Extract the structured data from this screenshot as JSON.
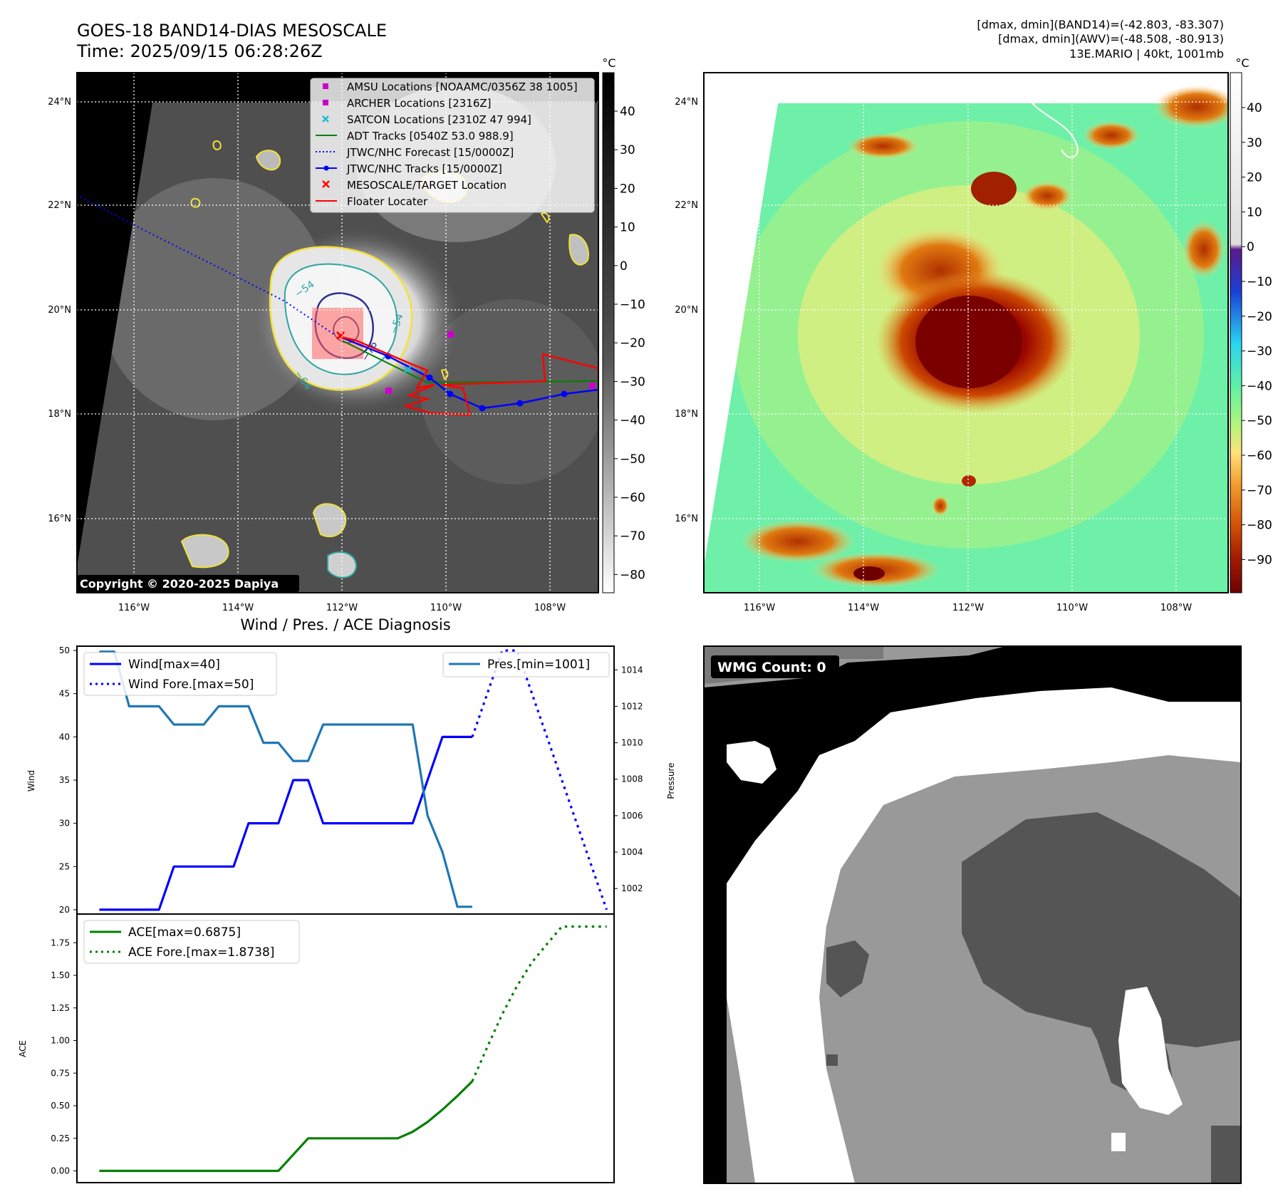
{
  "header": {
    "title_line1": "GOES-18 BAND14-DIAS MESOSCALE",
    "title_line2": "Time: 2025/09/15 06:28:26Z",
    "stat_line1": "[dmax, dmin](BAND14)=(-42.803, -83.307)",
    "stat_line2": "[dmax, dmin](AWV)=(-48.508, -80.913)",
    "stat_line3": "13E.MARIO | 40kt, 1001mb"
  },
  "copyright": "Copyright © 2020-2025 Dapiya",
  "map_axes": {
    "lon_labels": [
      "116°W",
      "114°W",
      "112°W",
      "110°W",
      "108°W"
    ],
    "lat_labels": [
      "24°N",
      "22°N",
      "20°N",
      "18°N",
      "16°N"
    ]
  },
  "ir_colorbar": {
    "unit": "°C",
    "ticks": [
      "40",
      "30",
      "20",
      "10",
      "0",
      "−10",
      "−20",
      "−30",
      "−40",
      "−50",
      "−60",
      "−70",
      "−80"
    ]
  },
  "awv_colorbar": {
    "unit": "°C",
    "ticks": [
      "40",
      "30",
      "20",
      "10",
      "0",
      "−10",
      "−20",
      "−30",
      "−40",
      "−50",
      "−60",
      "−70",
      "−80",
      "−90"
    ]
  },
  "contour_labels": [
    "−54",
    "−64",
    "−76",
    "−54"
  ],
  "legend": [
    {
      "label": "AMSU Locations [NOAAMC/0356Z 38 1005]",
      "marker": "square",
      "color": "#cc00cc"
    },
    {
      "label": "ARCHER Locations [2316Z]",
      "marker": "square",
      "color": "#cc00cc"
    },
    {
      "label": "SATCON Locations [2310Z 47 994]",
      "marker": "x",
      "color": "#17becf"
    },
    {
      "label": "ADT Tracks [0540Z 53.0 988.9]",
      "marker": "line",
      "color": "#008000"
    },
    {
      "label": "JTWC/NHC Forecast [15/0000Z]",
      "marker": "dotted",
      "color": "#0000ff"
    },
    {
      "label": "JTWC/NHC Tracks [15/0000Z]",
      "marker": "line-dot",
      "color": "#0000ff"
    },
    {
      "label": "MESOSCALE/TARGET Location",
      "marker": "x",
      "color": "#ff0000"
    },
    {
      "label": "Floater Locater",
      "marker": "line",
      "color": "#ff0000"
    }
  ],
  "wmg": {
    "label": "WMG Count: 0"
  },
  "chart_data": [
    {
      "type": "line",
      "title": "Wind / Pres. / ACE Diagnosis",
      "ylabel": "Wind",
      "ylabel_right": "Pressure",
      "ylim": [
        19.5,
        50.5
      ],
      "ylim_right": [
        1000.6,
        1015.3
      ],
      "xlim": [
        -1.5,
        34.5
      ],
      "y_ticks": [
        "50",
        "45",
        "40",
        "35",
        "30",
        "25",
        "20"
      ],
      "y_ticks_right": [
        "1014",
        "1012",
        "1010",
        "1008",
        "1006",
        "1004",
        "1002"
      ],
      "series": [
        {
          "name": "Wind[max=40]",
          "color": "#0000ff",
          "style": "solid",
          "x": [
            0,
            1,
            2,
            3,
            4,
            5,
            6,
            7,
            8,
            9,
            10,
            11,
            12,
            13,
            14,
            15,
            16,
            17,
            18,
            19,
            20,
            21,
            22,
            23,
            24,
            25
          ],
          "values": [
            20,
            20,
            20,
            20,
            20,
            25,
            25,
            25,
            25,
            25,
            30,
            30,
            30,
            35,
            35,
            30,
            30,
            30,
            30,
            30,
            30,
            30,
            35,
            40,
            40,
            40
          ]
        },
        {
          "name": "Wind Fore.[max=50]",
          "color": "#0000ff",
          "style": "dotted",
          "x": [
            25,
            26,
            27,
            28,
            29,
            30,
            31,
            32,
            33,
            34
          ],
          "values": [
            40,
            45,
            50,
            50,
            45,
            40,
            35,
            30,
            25,
            20
          ]
        },
        {
          "name": "Pres.[min=1001]",
          "color": "#1f77b4",
          "style": "solid",
          "axis": "right",
          "x": [
            0,
            1,
            2,
            3,
            4,
            5,
            6,
            7,
            8,
            9,
            10,
            11,
            12,
            13,
            14,
            15,
            16,
            17,
            18,
            19,
            20,
            21,
            22,
            23,
            24,
            25
          ],
          "values": [
            1015,
            1015,
            1012,
            1012,
            1012,
            1011,
            1011,
            1011,
            1012,
            1012,
            1012,
            1010,
            1010,
            1009,
            1009,
            1011,
            1011,
            1011,
            1011,
            1011,
            1011,
            1011,
            1006,
            1004,
            1001,
            1001
          ]
        }
      ]
    },
    {
      "type": "line",
      "ylabel": "ACE",
      "ylim": [
        -0.09,
        1.97
      ],
      "xlim": [
        -1.5,
        34.5
      ],
      "y_ticks": [
        "1.75",
        "1.50",
        "1.25",
        "1.00",
        "0.75",
        "0.50",
        "0.25",
        "0.00"
      ],
      "series": [
        {
          "name": "ACE[max=0.6875]",
          "color": "#008000",
          "style": "solid",
          "x": [
            0,
            1,
            2,
            3,
            4,
            5,
            6,
            7,
            8,
            9,
            10,
            11,
            12,
            13,
            14,
            15,
            16,
            17,
            18,
            19,
            20,
            21,
            22,
            23,
            24,
            25
          ],
          "values": [
            0,
            0,
            0,
            0,
            0,
            0,
            0,
            0,
            0,
            0,
            0,
            0,
            0,
            0.125,
            0.25,
            0.25,
            0.25,
            0.25,
            0.25,
            0.25,
            0.25,
            0.3,
            0.375,
            0.47,
            0.575,
            0.6875
          ]
        },
        {
          "name": "ACE Fore.[max=1.8738]",
          "color": "#008000",
          "style": "dotted",
          "x": [
            25,
            26,
            27,
            28,
            29,
            30,
            31,
            32,
            33,
            34
          ],
          "values": [
            0.6875,
            0.95,
            1.2,
            1.42,
            1.6,
            1.74,
            1.8738,
            1.8738,
            1.8738,
            1.8738
          ]
        }
      ]
    }
  ]
}
